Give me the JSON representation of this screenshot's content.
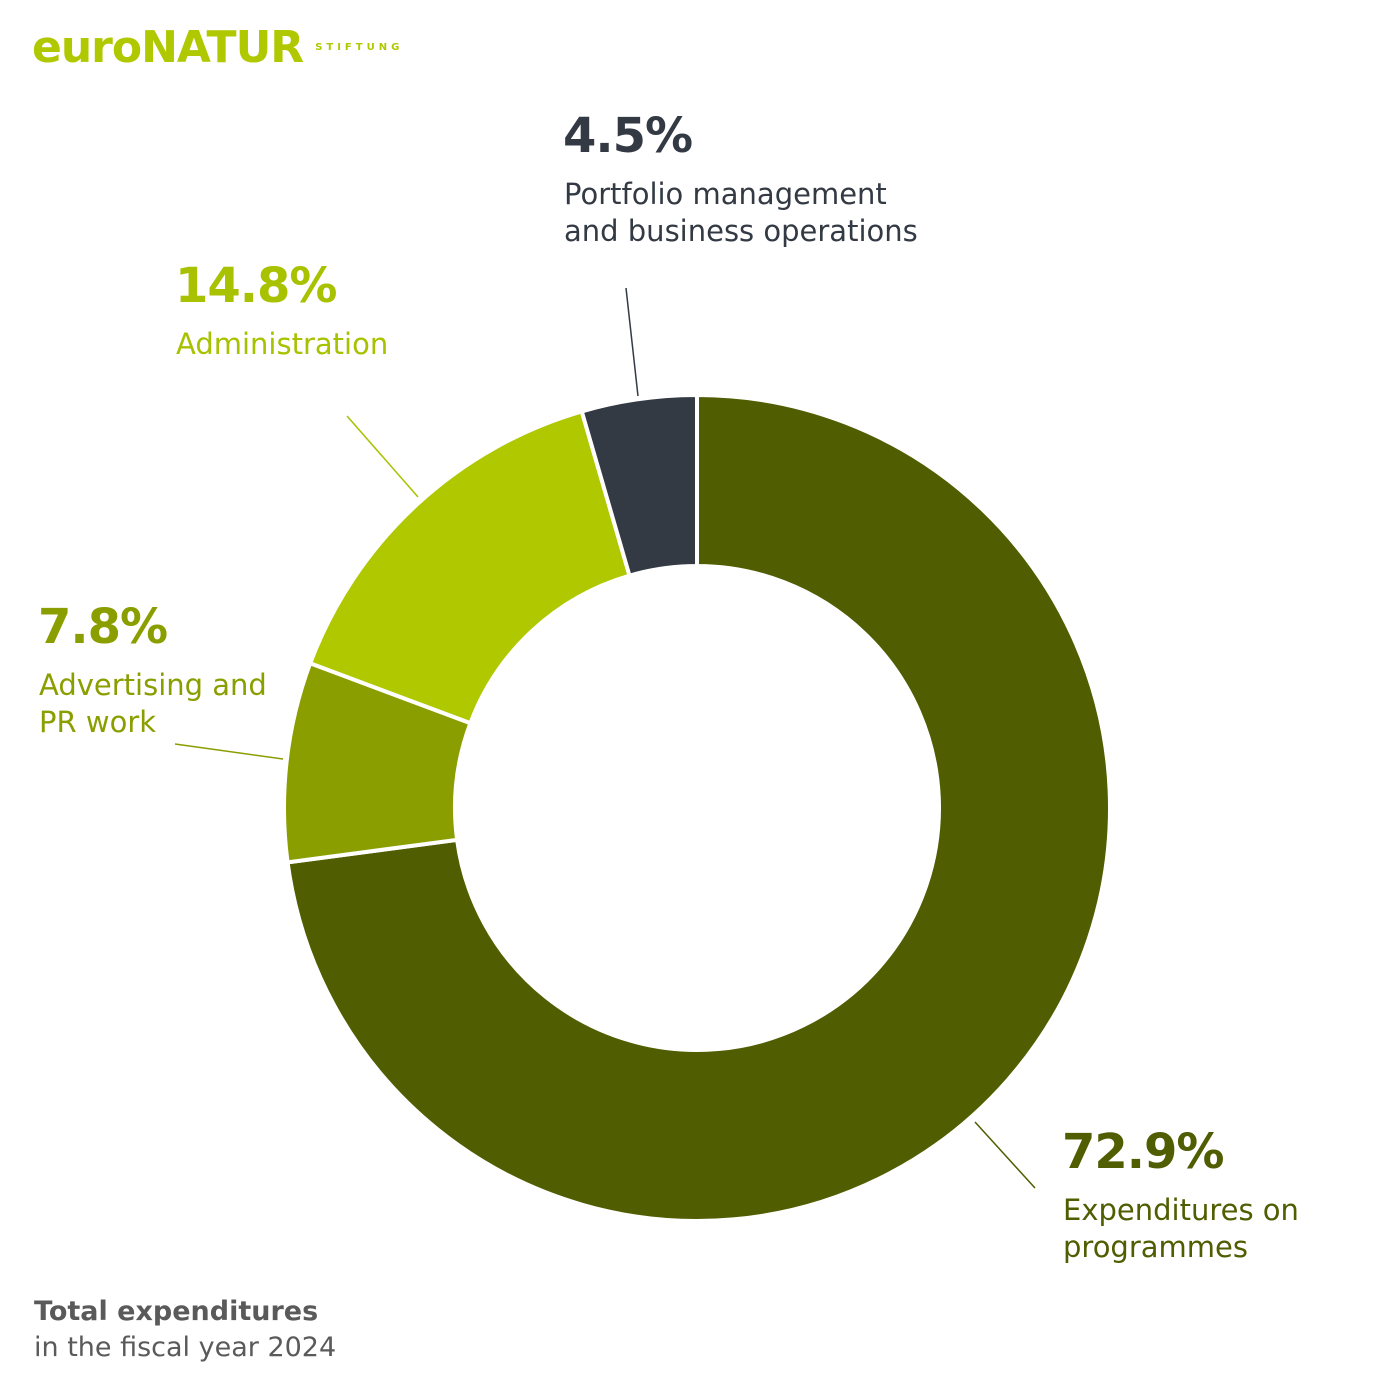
{
  "logo": {
    "word": "euroNATUR",
    "sub": "STIFTUNG"
  },
  "chart_data": {
    "type": "pie",
    "donut": true,
    "categories": [
      "Expenditures on programmes",
      "Advertising and PR work",
      "Administration",
      "Portfolio management and business operations"
    ],
    "values": [
      72.9,
      7.8,
      14.8,
      4.5
    ],
    "unit": "%",
    "labels": [
      {
        "pct": "72.9%",
        "lines": [
          "Expenditures on",
          "programmes"
        ]
      },
      {
        "pct": "7.8%",
        "lines": [
          "Advertising and",
          "PR work"
        ]
      },
      {
        "pct": "14.8%",
        "lines": [
          "Administration"
        ]
      },
      {
        "pct": "4.5%",
        "lines": [
          "Portfolio management",
          "and business operations"
        ]
      }
    ],
    "colors": [
      "#505d00",
      "#8b9e00",
      "#b0c800",
      "#333a44"
    ],
    "label_colors": [
      "#505d00",
      "#8b9e00",
      "#a8c100",
      "#333a44"
    ],
    "legend": "none"
  },
  "footer": {
    "title": "Total expenditures",
    "subtitle": "in the fiscal year 2024"
  }
}
